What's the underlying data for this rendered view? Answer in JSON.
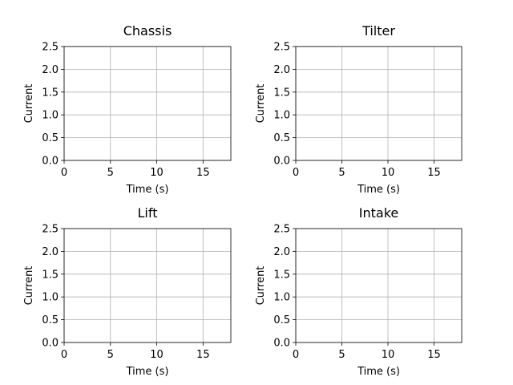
{
  "chart_data": [
    {
      "type": "line",
      "title": "Chassis",
      "xlabel": "Time (s)",
      "ylabel": "Current",
      "xlim": [
        0,
        18
      ],
      "ylim": [
        0,
        2.5
      ],
      "xticks": [
        0,
        5,
        10,
        15
      ],
      "yticks": [
        0.0,
        0.5,
        1.0,
        1.5,
        2.0,
        2.5
      ],
      "xtick_labels": [
        "0",
        "5",
        "10",
        "15"
      ],
      "ytick_labels": [
        "0.0",
        "0.5",
        "1.0",
        "1.5",
        "2.0",
        "2.5"
      ],
      "grid": true,
      "series": []
    },
    {
      "type": "line",
      "title": "Tilter",
      "xlabel": "Time (s)",
      "ylabel": "Current",
      "xlim": [
        0,
        18
      ],
      "ylim": [
        0,
        2.5
      ],
      "xticks": [
        0,
        5,
        10,
        15
      ],
      "yticks": [
        0.0,
        0.5,
        1.0,
        1.5,
        2.0,
        2.5
      ],
      "xtick_labels": [
        "0",
        "5",
        "10",
        "15"
      ],
      "ytick_labels": [
        "0.0",
        "0.5",
        "1.0",
        "1.5",
        "2.0",
        "2.5"
      ],
      "grid": true,
      "series": []
    },
    {
      "type": "line",
      "title": "Lift",
      "xlabel": "Time (s)",
      "ylabel": "Current",
      "xlim": [
        0,
        18
      ],
      "ylim": [
        0,
        2.5
      ],
      "xticks": [
        0,
        5,
        10,
        15
      ],
      "yticks": [
        0.0,
        0.5,
        1.0,
        1.5,
        2.0,
        2.5
      ],
      "xtick_labels": [
        "0",
        "5",
        "10",
        "15"
      ],
      "ytick_labels": [
        "0.0",
        "0.5",
        "1.0",
        "1.5",
        "2.0",
        "2.5"
      ],
      "grid": true,
      "series": []
    },
    {
      "type": "line",
      "title": "Intake",
      "xlabel": "Time (s)",
      "ylabel": "Current",
      "xlim": [
        0,
        18
      ],
      "ylim": [
        0,
        2.5
      ],
      "xticks": [
        0,
        5,
        10,
        15
      ],
      "yticks": [
        0.0,
        0.5,
        1.0,
        1.5,
        2.0,
        2.5
      ],
      "xtick_labels": [
        "0",
        "5",
        "10",
        "15"
      ],
      "ytick_labels": [
        "0.0",
        "0.5",
        "1.0",
        "1.5",
        "2.0",
        "2.5"
      ],
      "grid": true,
      "series": []
    }
  ]
}
